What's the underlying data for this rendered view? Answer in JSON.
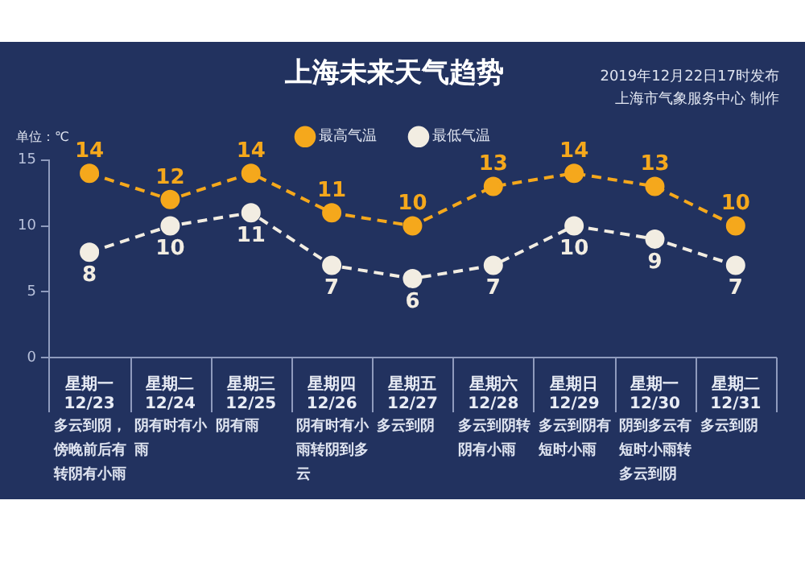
{
  "chart_data": {
    "type": "line",
    "title": "上海未来天气趋势",
    "ylabel": "单位：℃",
    "categories": [
      "星期一\n12/23",
      "星期二\n12/24",
      "星期三\n12/25",
      "星期四\n12/26",
      "星期五\n12/27",
      "星期六\n12/28",
      "星期日\n12/29",
      "星期一\n12/30",
      "星期二\n12/31"
    ],
    "series": [
      {
        "name": "最高气温",
        "color": "#f5a81c",
        "values": [
          14,
          12,
          14,
          11,
          10,
          13,
          14,
          13,
          10
        ]
      },
      {
        "name": "最低气温",
        "color": "#f2ede2",
        "values": [
          8,
          10,
          11,
          7,
          6,
          7,
          10,
          9,
          7
        ]
      }
    ],
    "ylim": [
      0,
      15
    ],
    "yticks": [
      0,
      5,
      10,
      15
    ],
    "legend": "top",
    "marker": "circle",
    "line_style": "dashed",
    "data_labels": true,
    "annotations": [
      "2019年12月22日17时发布",
      "上海市气象服务中心 制作",
      "多云到阴，傍晚前后有转阴有小雨",
      "阴有时有小雨",
      "阴有雨",
      "阴有时有小雨转阴到多云",
      "多云到阴",
      "多云到阴转阴有小雨",
      "多云到阴有短时小雨",
      "阴到多云有短时小雨转多云到阴",
      "多云到阴"
    ]
  }
}
